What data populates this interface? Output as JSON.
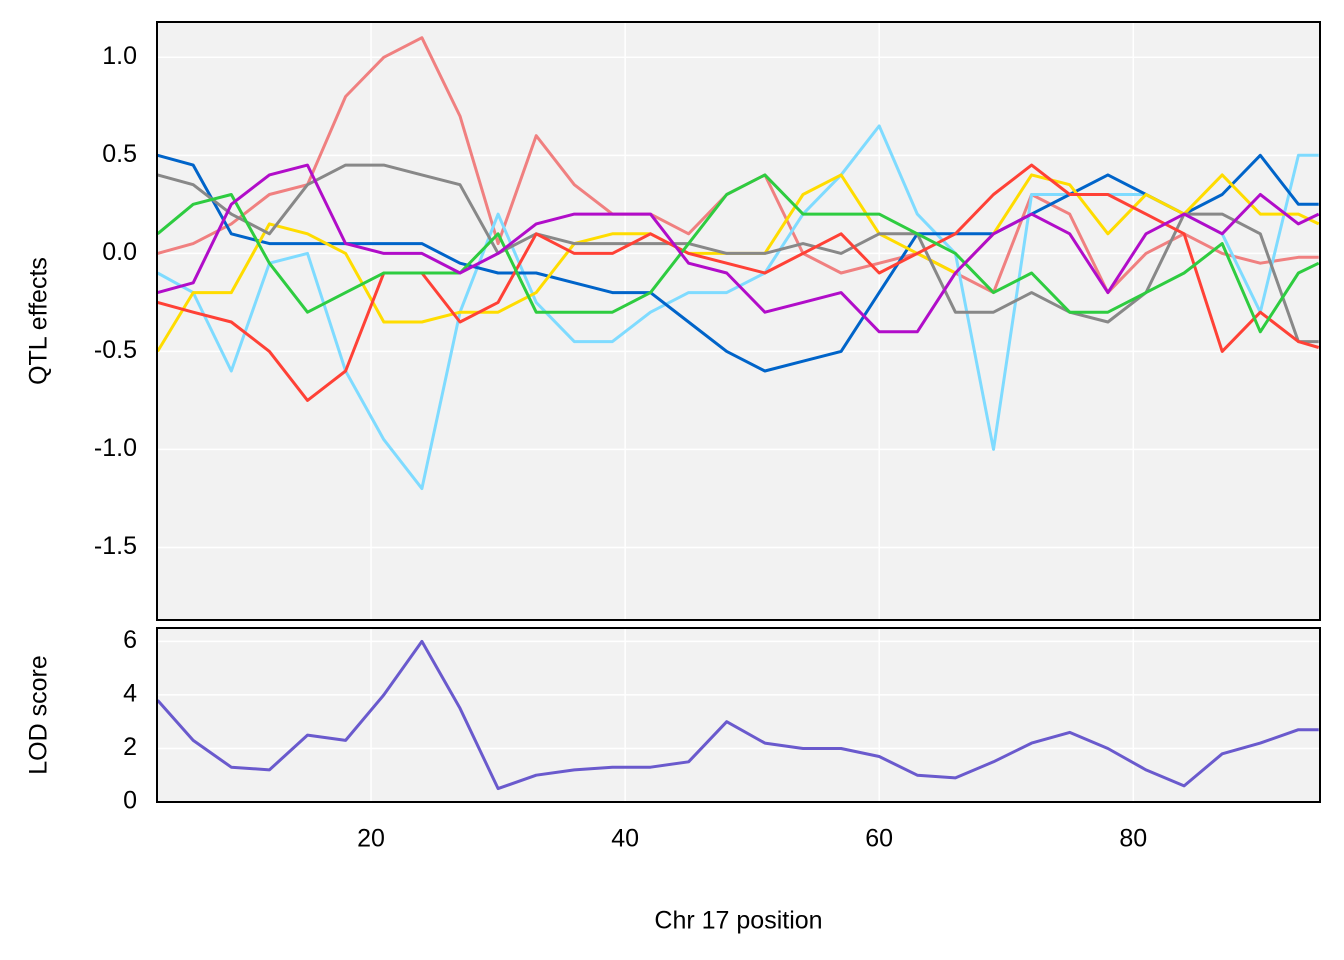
{
  "chart_data": [
    {
      "type": "line",
      "ylabel": "QTL effects",
      "x": [
        3.2,
        6,
        9,
        12,
        15,
        18,
        21,
        24,
        27,
        30,
        33,
        36,
        39,
        42,
        45,
        48,
        51,
        54,
        57,
        60,
        63,
        66,
        69,
        72,
        75,
        78,
        81,
        84,
        87,
        90,
        93,
        94.6
      ],
      "xlim": [
        3.15,
        94.7
      ],
      "xticks": [
        20,
        40,
        60,
        80
      ],
      "ylim": [
        -1.87,
        1.18
      ],
      "yticks": [
        {
          "value": 1.0,
          "label": "1.0"
        },
        0.5,
        {
          "value": 0.0,
          "label": "0.0"
        },
        -0.5,
        {
          "value": -1.0,
          "label": "-1.0"
        },
        -1.5
      ],
      "grid": true,
      "series": [
        {
          "color": "#f08080",
          "values": [
            0.0,
            0.05,
            0.15,
            0.3,
            0.35,
            0.8,
            1.0,
            1.1,
            0.7,
            0.05,
            0.6,
            0.35,
            0.2,
            0.2,
            0.1,
            0.3,
            0.4,
            0.0,
            -0.1,
            -0.05,
            0.0,
            -0.1,
            -0.2,
            0.3,
            0.2,
            -0.2,
            0.0,
            0.1,
            0.0,
            -0.05,
            -0.02,
            -0.02
          ]
        },
        {
          "color": "#7fdbff",
          "values": [
            -0.1,
            -0.2,
            -0.6,
            -0.05,
            0.0,
            -0.6,
            -0.95,
            -1.2,
            -0.3,
            0.2,
            -0.25,
            -0.45,
            -0.45,
            -0.3,
            -0.2,
            -0.2,
            -0.1,
            0.2,
            0.4,
            0.65,
            0.2,
            0.0,
            -1.0,
            0.3,
            0.3,
            0.3,
            0.3,
            0.2,
            0.1,
            -0.3,
            0.5,
            0.5
          ]
        },
        {
          "color": "#0064c9",
          "values": [
            0.5,
            0.45,
            0.1,
            0.05,
            0.05,
            0.05,
            0.05,
            0.05,
            -0.05,
            -0.1,
            -0.1,
            -0.15,
            -0.2,
            -0.2,
            -0.35,
            -0.5,
            -0.6,
            -0.55,
            -0.5,
            -0.2,
            0.1,
            0.1,
            0.1,
            0.2,
            0.3,
            0.4,
            0.3,
            0.2,
            0.3,
            0.5,
            0.25,
            0.25
          ]
        },
        {
          "color": "#ffdc00",
          "values": [
            -0.5,
            -0.2,
            -0.2,
            0.15,
            0.1,
            0.0,
            -0.35,
            -0.35,
            -0.3,
            -0.3,
            -0.2,
            0.05,
            0.1,
            0.1,
            0.0,
            0.0,
            0.0,
            0.3,
            0.4,
            0.1,
            0.0,
            -0.1,
            0.1,
            0.4,
            0.35,
            0.1,
            0.3,
            0.2,
            0.4,
            0.2,
            0.2,
            0.15
          ]
        },
        {
          "color": "#888888",
          "values": [
            0.4,
            0.35,
            0.2,
            0.1,
            0.35,
            0.45,
            0.45,
            0.4,
            0.35,
            0.0,
            0.1,
            0.05,
            0.05,
            0.05,
            0.05,
            0.0,
            0.0,
            0.05,
            0.0,
            0.1,
            0.1,
            -0.3,
            -0.3,
            -0.2,
            -0.3,
            -0.35,
            -0.2,
            0.2,
            0.2,
            0.1,
            -0.45,
            -0.45
          ]
        },
        {
          "color": "#ff4136",
          "values": [
            -0.25,
            -0.3,
            -0.35,
            -0.5,
            -0.75,
            -0.6,
            -0.1,
            -0.1,
            -0.35,
            -0.25,
            0.1,
            0.0,
            0.0,
            0.1,
            0.0,
            -0.05,
            -0.1,
            0.0,
            0.1,
            -0.1,
            0.0,
            0.1,
            0.3,
            0.45,
            0.3,
            0.3,
            0.2,
            0.1,
            -0.5,
            -0.3,
            -0.45,
            -0.48
          ]
        },
        {
          "color": "#2ecc40",
          "values": [
            0.1,
            0.25,
            0.3,
            -0.05,
            -0.3,
            -0.2,
            -0.1,
            -0.1,
            -0.1,
            0.1,
            -0.3,
            -0.3,
            -0.3,
            -0.2,
            0.05,
            0.3,
            0.4,
            0.2,
            0.2,
            0.2,
            0.1,
            0.0,
            -0.2,
            -0.1,
            -0.3,
            -0.3,
            -0.2,
            -0.1,
            0.05,
            -0.4,
            -0.1,
            -0.05
          ]
        },
        {
          "color": "#b10dc9",
          "values": [
            -0.2,
            -0.15,
            0.25,
            0.4,
            0.45,
            0.05,
            0.0,
            0.0,
            -0.1,
            0.0,
            0.15,
            0.2,
            0.2,
            0.2,
            -0.05,
            -0.1,
            -0.3,
            -0.25,
            -0.2,
            -0.4,
            -0.4,
            -0.1,
            0.1,
            0.2,
            0.1,
            -0.2,
            0.1,
            0.2,
            0.1,
            0.3,
            0.15,
            0.2
          ]
        }
      ]
    },
    {
      "type": "line",
      "ylabel": "LOD score",
      "xlabel": "Chr 17 position",
      "x": [
        3.2,
        6,
        9,
        12,
        15,
        18,
        21,
        24,
        27,
        30,
        33,
        36,
        39,
        42,
        45,
        48,
        51,
        54,
        57,
        60,
        63,
        66,
        69,
        72,
        75,
        78,
        81,
        84,
        87,
        90,
        93,
        94.6
      ],
      "xlim": [
        3.15,
        94.7
      ],
      "xticks": [
        20,
        40,
        60,
        80
      ],
      "ylim": [
        0,
        6.5
      ],
      "yticks": [
        0,
        2,
        4,
        6
      ],
      "grid": true,
      "series": [
        {
          "color": "#6a5acd",
          "values": [
            3.8,
            2.3,
            1.3,
            1.2,
            2.5,
            2.3,
            4.0,
            6.0,
            3.5,
            0.5,
            1.0,
            1.2,
            1.3,
            1.3,
            1.5,
            3.0,
            2.2,
            2.0,
            2.0,
            1.7,
            1.0,
            0.9,
            1.5,
            2.2,
            2.6,
            2.0,
            1.2,
            0.6,
            1.8,
            2.2,
            2.7,
            2.7
          ]
        }
      ]
    }
  ]
}
